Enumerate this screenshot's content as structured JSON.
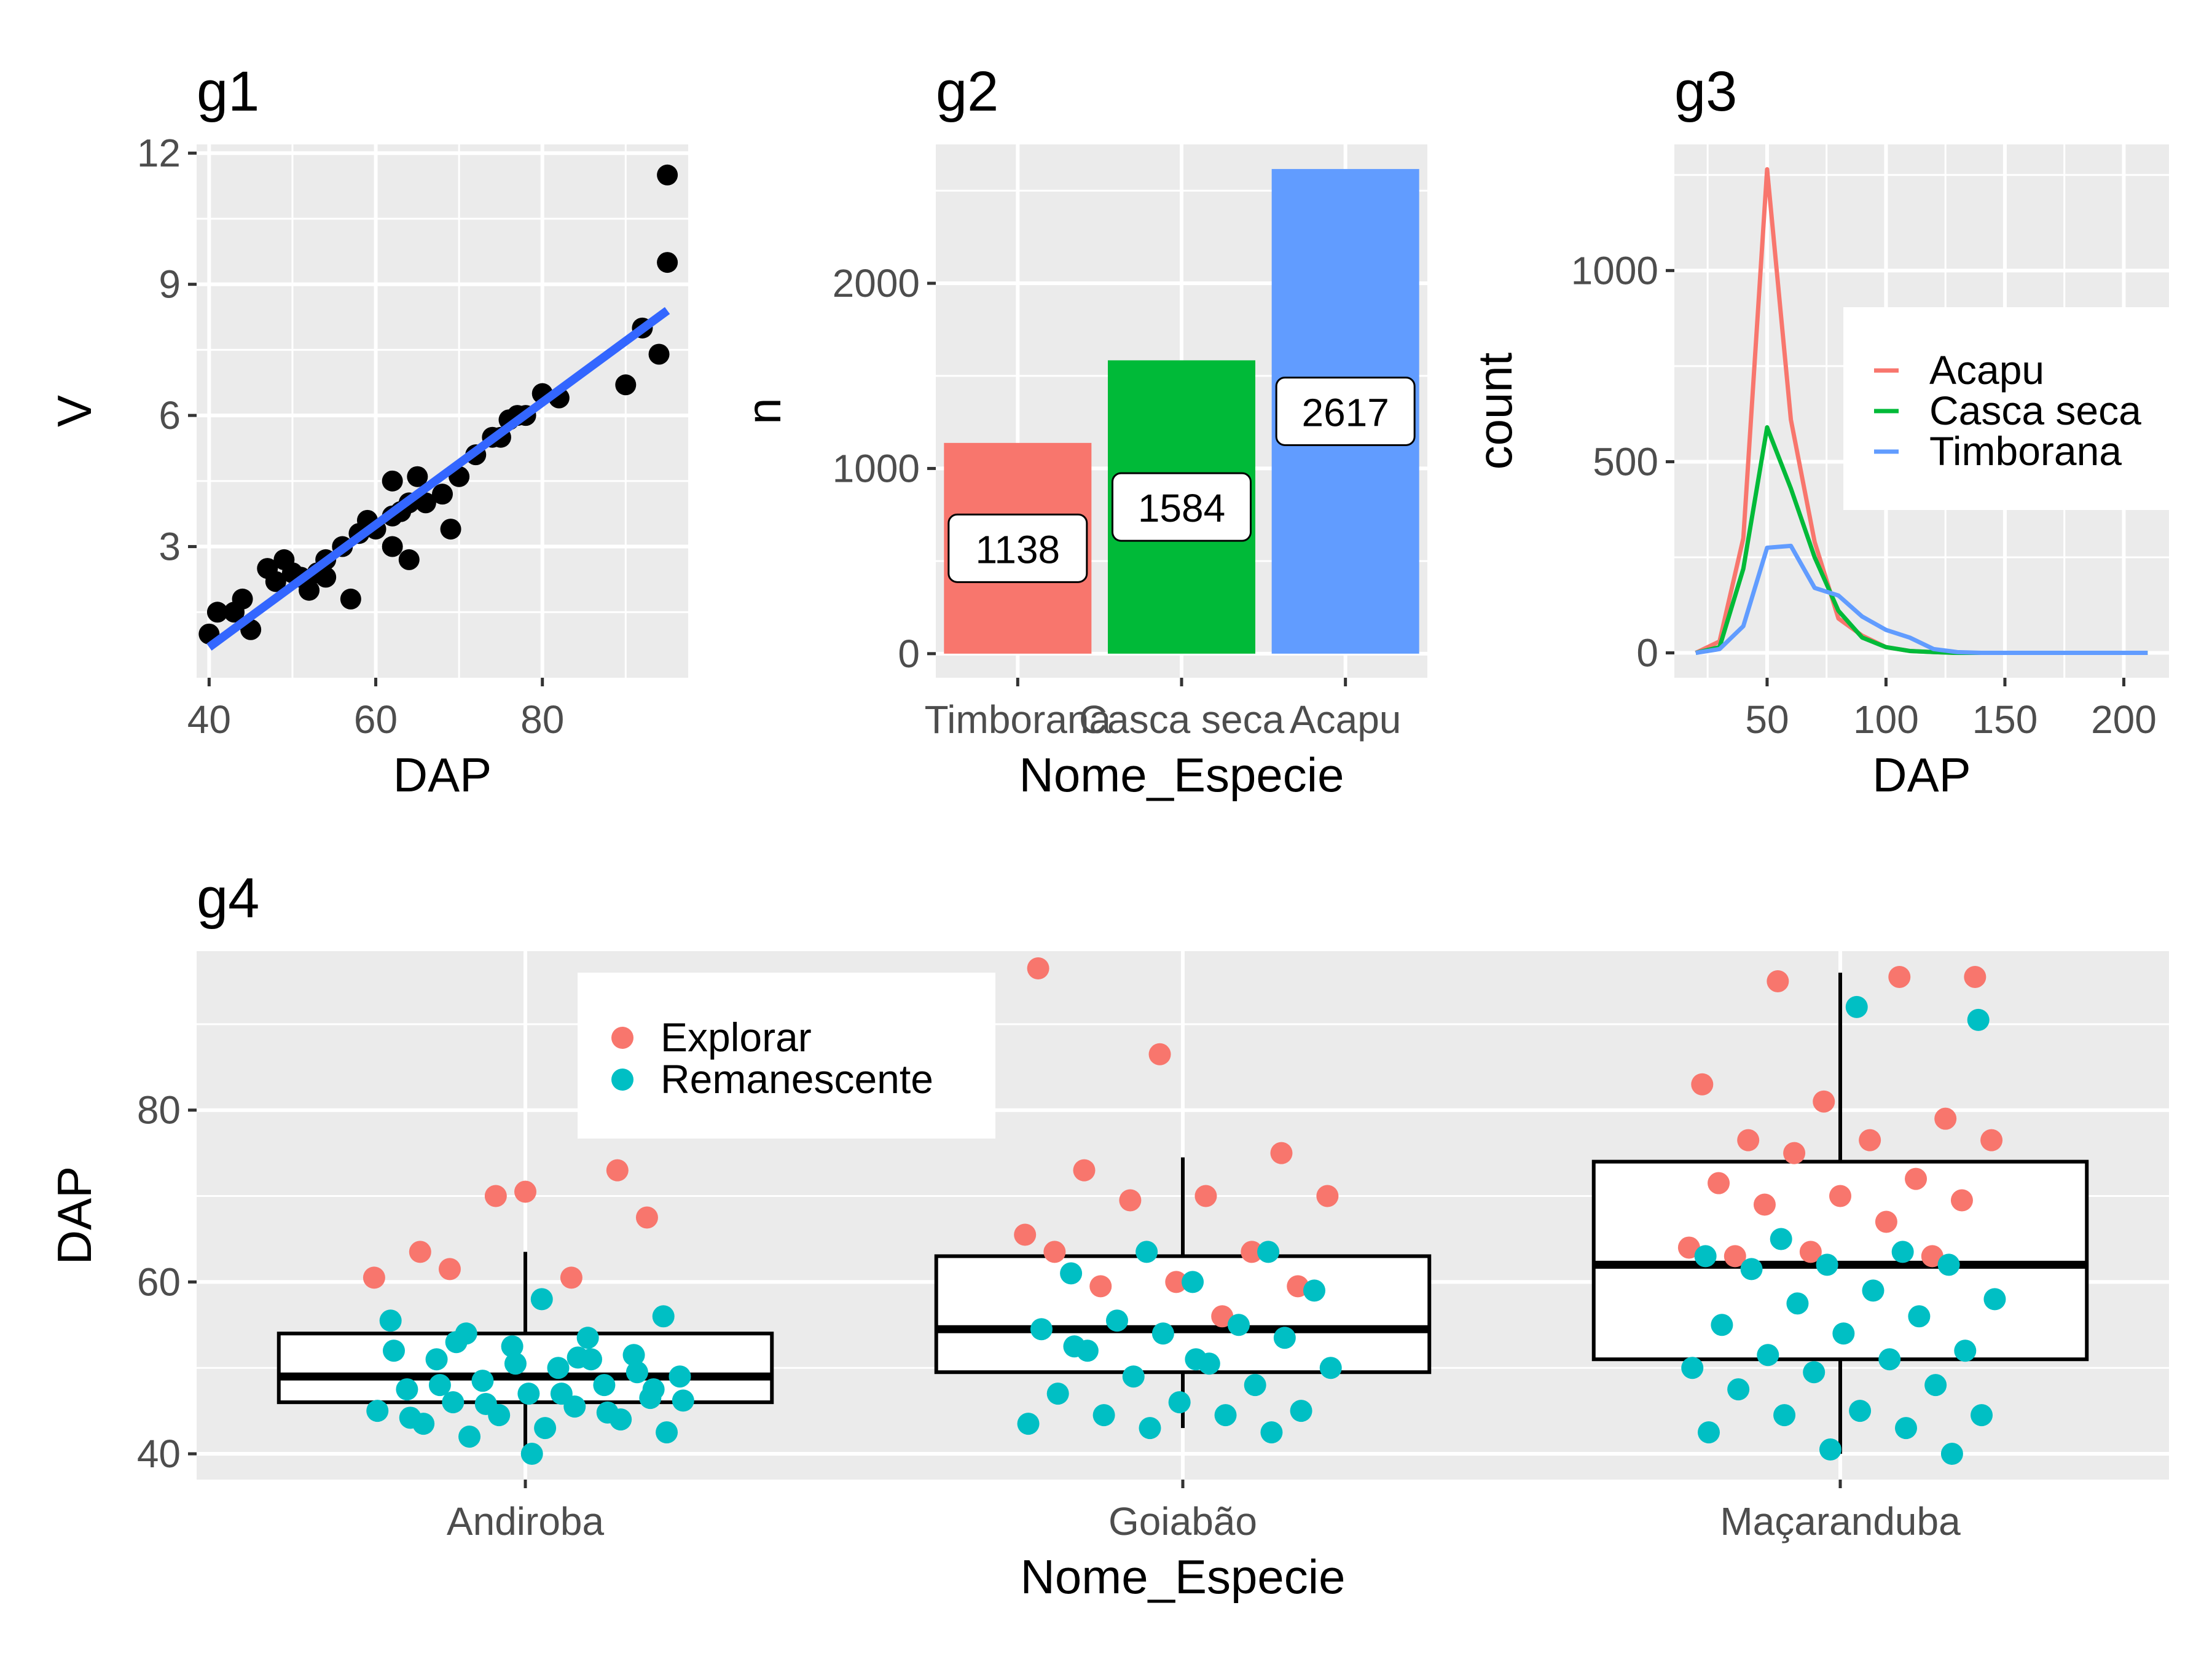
{
  "chart_data": [
    {
      "id": "g1",
      "type": "scatter",
      "title": "g1",
      "xlabel": "DAP",
      "ylabel": "V",
      "xlim": [
        38.5,
        97.5
      ],
      "ylim": [
        0.0,
        12.2
      ],
      "xticks": [
        40,
        60,
        80
      ],
      "yticks": [
        3,
        6,
        9,
        12
      ],
      "grid": true,
      "points": [
        [
          40,
          1.0
        ],
        [
          41,
          1.5
        ],
        [
          43,
          1.5
        ],
        [
          44,
          1.8
        ],
        [
          45,
          1.1
        ],
        [
          47,
          2.5
        ],
        [
          48,
          2.2
        ],
        [
          49,
          2.7
        ],
        [
          50,
          2.4
        ],
        [
          51,
          2.3
        ],
        [
          52,
          2.0
        ],
        [
          53,
          2.4
        ],
        [
          54,
          2.7
        ],
        [
          54,
          2.3
        ],
        [
          56,
          3.0
        ],
        [
          57,
          1.8
        ],
        [
          58,
          3.3
        ],
        [
          59,
          3.6
        ],
        [
          60,
          3.4
        ],
        [
          62,
          4.5
        ],
        [
          62,
          3.0
        ],
        [
          62,
          3.7
        ],
        [
          63,
          3.8
        ],
        [
          64,
          2.7
        ],
        [
          64,
          4.0
        ],
        [
          65,
          4.6
        ],
        [
          66,
          4.0
        ],
        [
          68,
          4.2
        ],
        [
          69,
          3.4
        ],
        [
          70,
          4.6
        ],
        [
          72,
          5.1
        ],
        [
          74,
          5.5
        ],
        [
          75,
          5.5
        ],
        [
          76,
          5.9
        ],
        [
          77,
          6.0
        ],
        [
          78,
          6.0
        ],
        [
          80,
          6.5
        ],
        [
          82,
          6.4
        ],
        [
          90,
          6.7
        ],
        [
          92,
          8.0
        ],
        [
          94,
          7.4
        ],
        [
          95,
          9.5
        ],
        [
          95,
          11.5
        ]
      ],
      "fit": {
        "type": "linear",
        "x": [
          40,
          95
        ],
        "y": [
          0.7,
          8.4
        ],
        "color": "#3366ff"
      },
      "point_color": "#000000"
    },
    {
      "id": "g2",
      "type": "bar",
      "title": "g2",
      "xlabel": "Nome_Especie",
      "ylabel": "n",
      "categories": [
        "Timborana",
        "Casca seca",
        "Acapu"
      ],
      "values": [
        1138,
        1584,
        2617
      ],
      "labels": [
        "1138",
        "1584",
        "2617"
      ],
      "colors": [
        "#f8766d",
        "#00ba38",
        "#619cff"
      ],
      "ylim": [
        -130,
        2750
      ],
      "yticks": [
        0,
        1000,
        2000
      ],
      "grid": true
    },
    {
      "id": "g3",
      "type": "line",
      "title": "g3",
      "xlabel": "DAP",
      "ylabel": "count",
      "xlim": [
        11,
        219
      ],
      "ylim": [
        -65,
        1330
      ],
      "xticks": [
        50,
        100,
        150,
        200
      ],
      "yticks": [
        0,
        500,
        1000
      ],
      "grid": true,
      "legend": {
        "position": "right-inside",
        "entries": [
          "Acapu",
          "Casca seca",
          "Timborana"
        ]
      },
      "series": [
        {
          "name": "Acapu",
          "color": "#f8766d",
          "x": [
            20,
            30,
            40,
            50,
            60,
            70,
            80,
            90,
            100,
            110,
            120,
            130,
            140,
            150,
            160,
            170,
            180,
            190,
            200,
            210
          ],
          "y": [
            0,
            30,
            300,
            1265,
            610,
            290,
            90,
            45,
            15,
            5,
            2,
            0,
            0,
            0,
            0,
            0,
            0,
            0,
            0,
            0
          ]
        },
        {
          "name": "Casca seca",
          "color": "#00ba38",
          "x": [
            20,
            30,
            40,
            50,
            60,
            70,
            80,
            90,
            100,
            110,
            120,
            130,
            140,
            150,
            160,
            170,
            180,
            190,
            200,
            210
          ],
          "y": [
            0,
            15,
            220,
            590,
            430,
            250,
            110,
            40,
            15,
            5,
            2,
            0,
            0,
            0,
            0,
            0,
            0,
            0,
            0,
            0
          ]
        },
        {
          "name": "Timborana",
          "color": "#619cff",
          "x": [
            20,
            30,
            40,
            50,
            60,
            70,
            80,
            90,
            100,
            110,
            120,
            130,
            140,
            150,
            160,
            170,
            180,
            190,
            200,
            210
          ],
          "y": [
            0,
            10,
            70,
            275,
            280,
            170,
            150,
            95,
            60,
            40,
            10,
            2,
            0,
            0,
            0,
            0,
            0,
            0,
            0,
            0
          ]
        }
      ]
    },
    {
      "id": "g4",
      "type": "boxplot",
      "title": "g4",
      "xlabel": "Nome_Especie",
      "ylabel": "DAP",
      "categories": [
        "Andiroba",
        "Goiabão",
        "Maçaranduba"
      ],
      "ylim": [
        37,
        98.5
      ],
      "yticks": [
        40,
        60,
        80
      ],
      "grid": true,
      "legend": {
        "position": "top-left-inside",
        "entries": [
          {
            "name": "Explorar",
            "color": "#f8766d"
          },
          {
            "name": "Remanescente",
            "color": "#00bfc4"
          }
        ]
      },
      "boxes": [
        {
          "category": "Andiroba",
          "whisker_low": 40,
          "q1": 46,
          "median": 49,
          "q3": 54,
          "whisker_high": 63.5
        },
        {
          "category": "Goiabão",
          "whisker_low": 43,
          "q1": 49.5,
          "median": 54.5,
          "q3": 63,
          "whisker_high": 74.5
        },
        {
          "category": "Maçaranduba",
          "whisker_low": 40,
          "q1": 51,
          "median": 62,
          "q3": 74,
          "whisker_high": 96
        }
      ],
      "points": [
        {
          "group": "Explorar",
          "category": "Andiroba",
          "values": [
            70.5,
            67.5,
            61.5,
            60.5,
            60.5,
            70,
            73,
            63.5
          ]
        },
        {
          "group": "Remanescente",
          "category": "Andiroba",
          "values": [
            58,
            56,
            54,
            53.5,
            55.5,
            52.5,
            51.5,
            51,
            50,
            49,
            48.5,
            48,
            47.5,
            47,
            46.5,
            46,
            45.5,
            45,
            44.5,
            44,
            43.5,
            43,
            42.5,
            42,
            51,
            52,
            50.5,
            49.5,
            48,
            47,
            46.2,
            45.8,
            44.8,
            44.2,
            40,
            47.5,
            53,
            51.2
          ]
        },
        {
          "group": "Explorar",
          "category": "Goiabão",
          "values": [
            96.5,
            86.5,
            75,
            73,
            70,
            70,
            69.5,
            63.5,
            63.5,
            60,
            59.5,
            59.5,
            56,
            65.5
          ]
        },
        {
          "group": "Remanescente",
          "category": "Goiabão",
          "values": [
            63.5,
            63.5,
            61,
            60,
            59,
            55.5,
            55,
            54.5,
            54,
            53.5,
            52,
            50.5,
            50,
            49,
            48,
            47,
            46,
            45,
            44.5,
            44.5,
            43.5,
            43,
            42.5,
            52.5,
            51
          ]
        },
        {
          "group": "Explorar",
          "category": "Maçaranduba",
          "values": [
            95.5,
            95,
            95.5,
            83,
            81,
            79,
            76.5,
            76.5,
            76.5,
            75,
            72,
            71.5,
            70,
            69.5,
            69,
            67,
            64,
            63.5,
            63,
            63
          ]
        },
        {
          "group": "Remanescente",
          "category": "Maçaranduba",
          "values": [
            92,
            90.5,
            65,
            63.5,
            63,
            62,
            62,
            61.5,
            59,
            58,
            57.5,
            56,
            55,
            54,
            52,
            51.5,
            51,
            50,
            49.5,
            48,
            47.5,
            45,
            44.5,
            44.5,
            43,
            42.5,
            40.5,
            40
          ]
        }
      ]
    }
  ]
}
